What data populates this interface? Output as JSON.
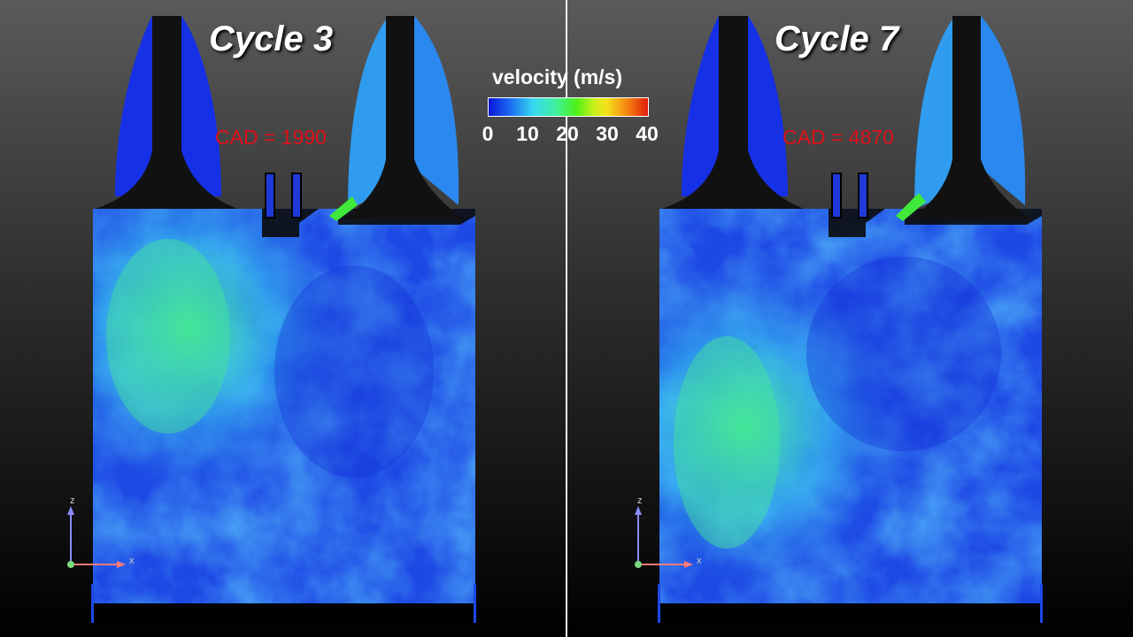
{
  "legend": {
    "title": "velocity (m/s)",
    "ticks": [
      "0",
      "10",
      "20",
      "30",
      "40"
    ],
    "colors": [
      "#0a16d8",
      "#1b6ff2",
      "#35d8f0",
      "#4cf018",
      "#f4e21a",
      "#e01c0a"
    ]
  },
  "panels": [
    {
      "title": "Cycle 3",
      "cad": "CAD = 1990"
    },
    {
      "title": "Cycle 7",
      "cad": "CAD = 4870"
    }
  ],
  "axes": {
    "z": "z",
    "x": "x"
  },
  "colors": {
    "field_low": "#1a3ce0",
    "field_mid": "#3fb0f0",
    "field_high": "#40e890",
    "valve_flow": "#40e83a",
    "geometry_outline": "#000000"
  }
}
